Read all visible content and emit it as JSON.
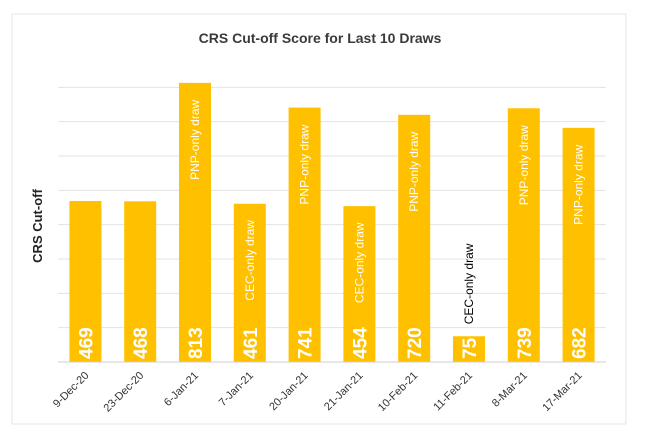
{
  "chart_data": {
    "type": "bar",
    "title": "CRS Cut-off Score for Last 10 Draws",
    "xlabel": "",
    "ylabel": "CRS Cut-off",
    "ylim": [
      0,
      900
    ],
    "grid": true,
    "categories": [
      "9-Dec-20",
      "23-Dec-20",
      "6-Jan-21",
      "7-Jan-21",
      "20-Jan-21",
      "21-Jan-21",
      "10-Feb-21",
      "11-Feb-21",
      "8-Mar-21",
      "17-Mar-21"
    ],
    "values": [
      469,
      468,
      813,
      461,
      741,
      454,
      720,
      75,
      739,
      682
    ],
    "annotations": [
      "",
      "",
      "PNP-only draw",
      "CEC-only draw",
      "PNP-only draw",
      "CEC-only draw",
      "PNP-only draw",
      "CEC-only draw",
      "PNP-only draw",
      "PNP-only draw"
    ],
    "bar_color": "#ffc000",
    "label_color": "#ffffff",
    "outside_annotation_color": "#000000"
  }
}
